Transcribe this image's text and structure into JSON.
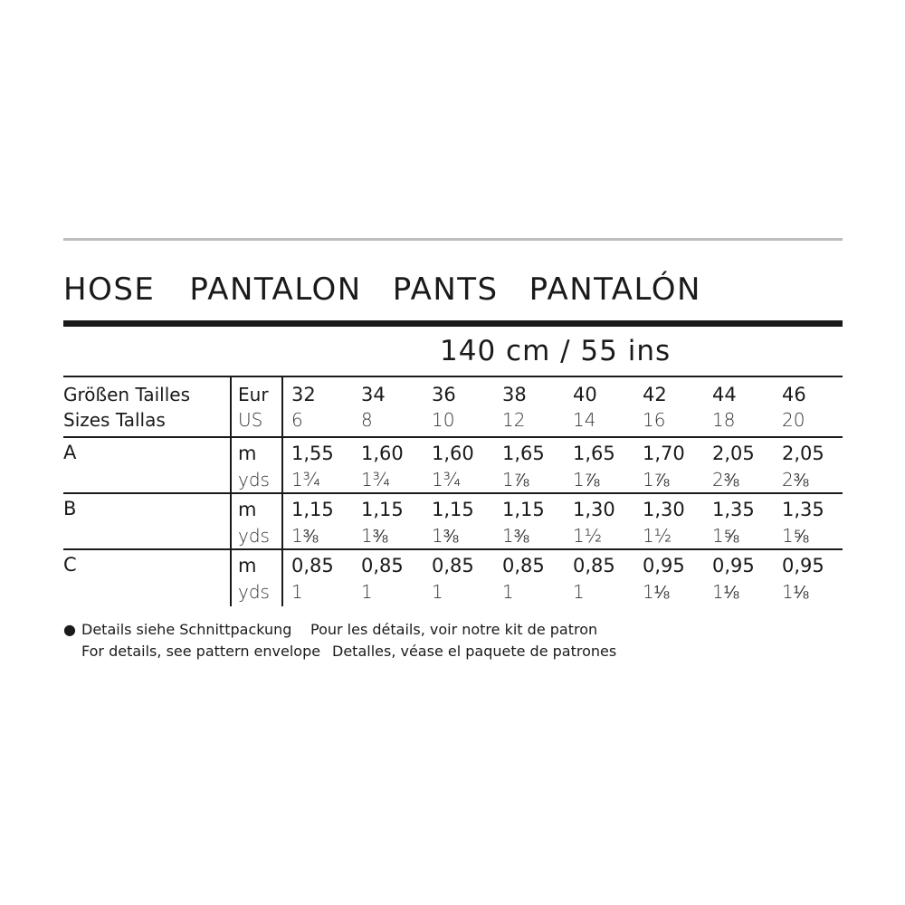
{
  "title_words": [
    "HOSE",
    "PANTALON",
    "PANTS",
    "PANTALÓN"
  ],
  "fabric_width": "140 cm / 55 ins",
  "header": {
    "row1_label": "Größen  Tailles",
    "row2_label": "Sizes  Tallas",
    "row1_unit": "Eur",
    "row2_unit": "US",
    "eur_sizes": [
      "32",
      "34",
      "36",
      "38",
      "40",
      "42",
      "44",
      "46"
    ],
    "us_sizes": [
      "6",
      "8",
      "10",
      "12",
      "14",
      "16",
      "18",
      "20"
    ]
  },
  "views": [
    {
      "label": "A",
      "m_unit": "m",
      "yds_unit": "yds",
      "m": [
        "1,55",
        "1,60",
        "1,60",
        "1,65",
        "1,65",
        "1,70",
        "2,05",
        "2,05"
      ],
      "yds": [
        "1¾",
        "1¾",
        "1¾",
        "1⅞",
        "1⅞",
        "1⅞",
        "2⅜",
        "2⅜"
      ]
    },
    {
      "label": "B",
      "m_unit": "m",
      "yds_unit": "yds",
      "m": [
        "1,15",
        "1,15",
        "1,15",
        "1,15",
        "1,30",
        "1,30",
        "1,35",
        "1,35"
      ],
      "yds": [
        "1⅜",
        "1⅜",
        "1⅜",
        "1⅜",
        "1½",
        "1½",
        "1⅝",
        "1⅝"
      ]
    },
    {
      "label": "C",
      "m_unit": "m",
      "yds_unit": "yds",
      "m": [
        "0,85",
        "0,85",
        "0,85",
        "0,85",
        "0,85",
        "0,95",
        "0,95",
        "0,95"
      ],
      "yds": [
        "1",
        "1",
        "1",
        "1",
        "1",
        "1⅛",
        "1⅛",
        "1⅛"
      ]
    }
  ],
  "notes": {
    "bullet": "●",
    "de": "Details siehe Schnittpackung",
    "fr": "Pour les détails, voir notre kit de patron",
    "en": "For details, see pattern envelope",
    "es": "Detalles, véase el paquete de patrones"
  }
}
